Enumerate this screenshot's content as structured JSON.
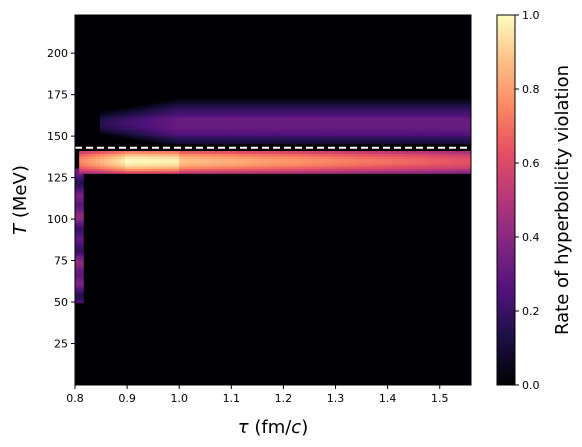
{
  "chart_data": {
    "type": "heatmap",
    "colormap": "magma",
    "background_color": "#000004",
    "xlabel": "τ (fm/c)",
    "ylabel": "T (MeV)",
    "colorbar_label": "Rate of hyperbolicity violation",
    "xlim": [
      0.8,
      1.56
    ],
    "ylim": [
      0,
      223
    ],
    "xticks": [
      "0.8",
      "0.9",
      "1.0",
      "1.1",
      "1.2",
      "1.3",
      "1.4",
      "1.5"
    ],
    "xtick_values": [
      0.8,
      0.9,
      1.0,
      1.1,
      1.2,
      1.3,
      1.4,
      1.5
    ],
    "yticks": [
      "25",
      "50",
      "75",
      "100",
      "125",
      "150",
      "175",
      "200"
    ],
    "ytick_values": [
      25,
      50,
      75,
      100,
      125,
      150,
      175,
      200
    ],
    "clim": [
      0.0,
      1.0
    ],
    "cbar_ticks": [
      "0.0",
      "0.2",
      "0.4",
      "0.6",
      "0.8",
      "1.0"
    ],
    "cbar_tick_values": [
      0.0,
      0.2,
      0.4,
      0.6,
      0.8,
      1.0
    ],
    "dashed_line": {
      "T": 143,
      "color": "#ffffff",
      "style": "dashed"
    },
    "regions": [
      {
        "name": "upper-band",
        "tau_start": 0.85,
        "tau_end": 1.56,
        "T_low": 146,
        "T_high": 176,
        "peak_rate": 0.32
      },
      {
        "name": "lower-band",
        "tau_start": 0.81,
        "tau_end": 1.56,
        "T_low": 127,
        "T_high": 141,
        "peak_rate": 1.0
      },
      {
        "name": "vertical-strip",
        "tau_start": 0.8,
        "tau_end": 0.81,
        "T_low": 50,
        "T_high": 130,
        "peak_rate": 0.55
      }
    ]
  }
}
